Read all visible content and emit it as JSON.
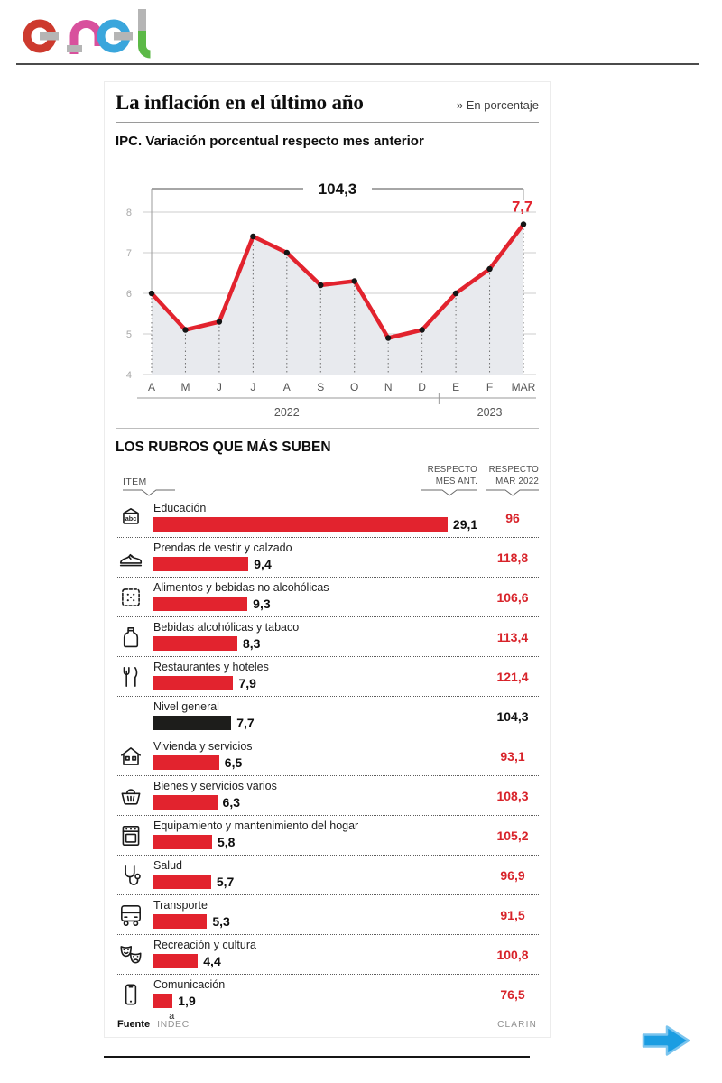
{
  "brand": {
    "logo_text": "enel"
  },
  "header": {
    "title": "La inflación en el último año",
    "note": "» En porcentaje"
  },
  "chart_data": [
    {
      "type": "line",
      "title": "IPC. Variación porcentual respecto mes anterior",
      "x": [
        "A",
        "M",
        "J",
        "J",
        "A",
        "S",
        "O",
        "N",
        "D",
        "E",
        "F",
        "MAR"
      ],
      "values": [
        6.0,
        5.1,
        5.3,
        7.4,
        7.0,
        6.2,
        6.3,
        4.9,
        5.1,
        6.0,
        6.6,
        7.7
      ],
      "ylim": [
        4,
        8
      ],
      "yticks": [
        4,
        5,
        6,
        7,
        8
      ],
      "grid": true,
      "legend": "none",
      "annotation_sum": "104,3",
      "end_label": "7,7",
      "year_groups": [
        {
          "label": "2022",
          "from": 0,
          "to": 8
        },
        {
          "label": "2023",
          "from": 9,
          "to": 11
        }
      ],
      "line_color": "#e2232e",
      "area_color": "#e8eaee",
      "point_color": "#151515"
    },
    {
      "type": "bar",
      "title": "LOS RUBROS QUE MÁS SUBEN",
      "xlim": [
        0,
        30
      ],
      "rows": [
        {
          "icon": "school-sign-icon",
          "label": "Educación",
          "value": 29.1,
          "value_label": "29,1",
          "respecto_mar_2022": "96",
          "highlight": false
        },
        {
          "icon": "sneaker-icon",
          "label": "Prendas de vestir y calzado",
          "value": 9.4,
          "value_label": "9,4",
          "respecto_mar_2022": "118,8",
          "highlight": false
        },
        {
          "icon": "cracker-icon",
          "label": "Alimentos y bebidas no alcohólicas",
          "value": 9.3,
          "value_label": "9,3",
          "respecto_mar_2022": "106,6",
          "highlight": false
        },
        {
          "icon": "bottle-icon",
          "label": "Bebidas alcohólicas y tabaco",
          "value": 8.3,
          "value_label": "8,3",
          "respecto_mar_2022": "113,4",
          "highlight": false
        },
        {
          "icon": "cutlery-icon",
          "label": "Restaurantes y hoteles",
          "value": 7.9,
          "value_label": "7,9",
          "respecto_mar_2022": "121,4",
          "highlight": false
        },
        {
          "icon": null,
          "label": "Nivel general",
          "value": 7.7,
          "value_label": "7,7",
          "respecto_mar_2022": "104,3",
          "highlight": true
        },
        {
          "icon": "house-icon",
          "label": "Vivienda y servicios",
          "value": 6.5,
          "value_label": "6,5",
          "respecto_mar_2022": "93,1",
          "highlight": false
        },
        {
          "icon": "basket-icon",
          "label": "Bienes y servicios varios",
          "value": 6.3,
          "value_label": "6,3",
          "respecto_mar_2022": "108,3",
          "highlight": false
        },
        {
          "icon": "stove-icon",
          "label": "Equipamiento y mantenimiento del hogar",
          "value": 5.8,
          "value_label": "5,8",
          "respecto_mar_2022": "105,2",
          "highlight": false
        },
        {
          "icon": "stethoscope-icon",
          "label": "Salud",
          "value": 5.7,
          "value_label": "5,7",
          "respecto_mar_2022": "96,9",
          "highlight": false
        },
        {
          "icon": "bus-icon",
          "label": "Transporte",
          "value": 5.3,
          "value_label": "5,3",
          "respecto_mar_2022": "91,5",
          "highlight": false
        },
        {
          "icon": "masks-icon",
          "label": "Recreación y cultura",
          "value": 4.4,
          "value_label": "4,4",
          "respecto_mar_2022": "100,8",
          "highlight": false
        },
        {
          "icon": "phone-icon",
          "label": "Comunicación",
          "value": 1.9,
          "value_label": "1,9",
          "respecto_mar_2022": "76,5",
          "highlight": false
        }
      ]
    }
  ],
  "columns": {
    "item": "ITEM",
    "mes_line1": "RESPECTO",
    "mes_line2": "MES ANT.",
    "mar_line1": "RESPECTO",
    "mar_line2": "MAR 2022"
  },
  "footer": {
    "source_label": "Fuente",
    "source": "INDEC",
    "source_mark": "a",
    "credit": "CLARIN"
  },
  "colors": {
    "bar_red": "#e2232e",
    "bar_dark": "#1d1d1b",
    "value_red": "#d8232a",
    "arrow_blue": "#1b9de2"
  }
}
